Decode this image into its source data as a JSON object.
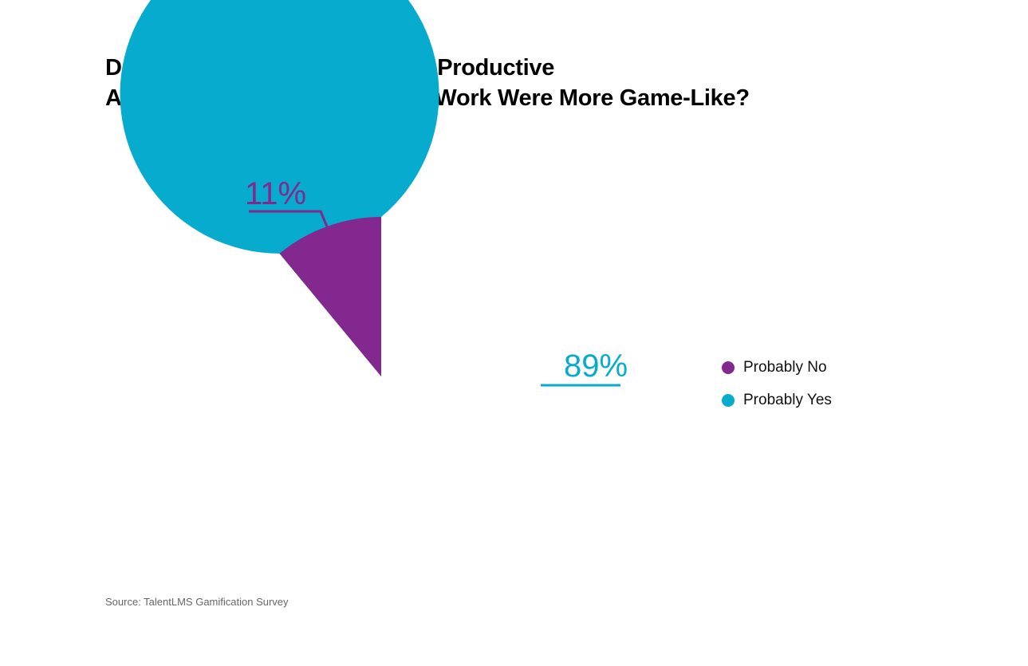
{
  "chart_data": {
    "type": "pie",
    "title_lines": [
      "Do You Believe You’d Be More Productive",
      "And Get Better Results If Your Work Were More Game-Like?"
    ],
    "slices": [
      {
        "name": "Probably No",
        "value": 11,
        "label": "11%",
        "color": "#82288f"
      },
      {
        "name": "Probably Yes",
        "value": 89,
        "label": "89%",
        "color": "#06abce"
      }
    ],
    "legend_position": "right",
    "source": "Source: TalentLMS Gamification Survey"
  }
}
